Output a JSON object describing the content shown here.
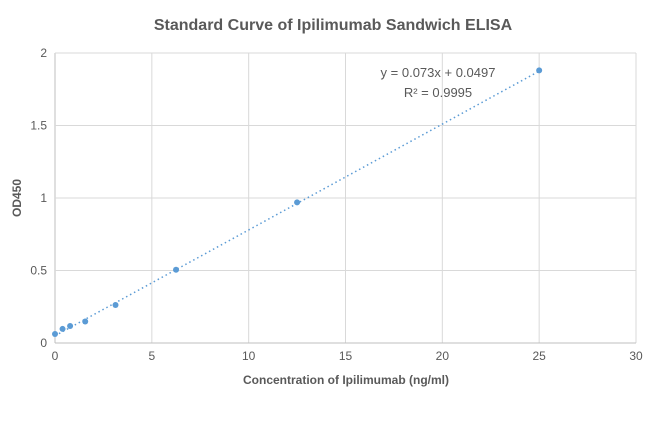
{
  "chart_data": {
    "type": "scatter",
    "title": "Standard Curve of Ipilimumab Sandwich ELISA",
    "xlabel": "Concentration of Ipilimumab (ng/ml)",
    "ylabel": "OD450",
    "xlim": [
      0,
      30
    ],
    "ylim": [
      0,
      2
    ],
    "xticks": [
      0,
      5,
      10,
      15,
      20,
      25,
      30
    ],
    "yticks": [
      0,
      0.5,
      1,
      1.5,
      2
    ],
    "ytick_labels": [
      "0",
      "0.5",
      "1",
      "1.5",
      "2"
    ],
    "grid": true,
    "series": [
      {
        "x": [
          0,
          0.39,
          0.78,
          1.56,
          3.125,
          6.25,
          12.5,
          25
        ],
        "y": [
          0.062,
          0.097,
          0.117,
          0.148,
          0.262,
          0.505,
          0.97,
          1.88
        ]
      }
    ],
    "trendline": {
      "type": "linear",
      "slope": 0.073,
      "intercept": 0.0497,
      "style": "dotted"
    },
    "annotations": [
      "y = 0.073x + 0.0497",
      "R² = 0.9995"
    ],
    "colors": {
      "series": "#5b9bd5",
      "grid": "#d9d9d9",
      "text": "#595959"
    }
  }
}
